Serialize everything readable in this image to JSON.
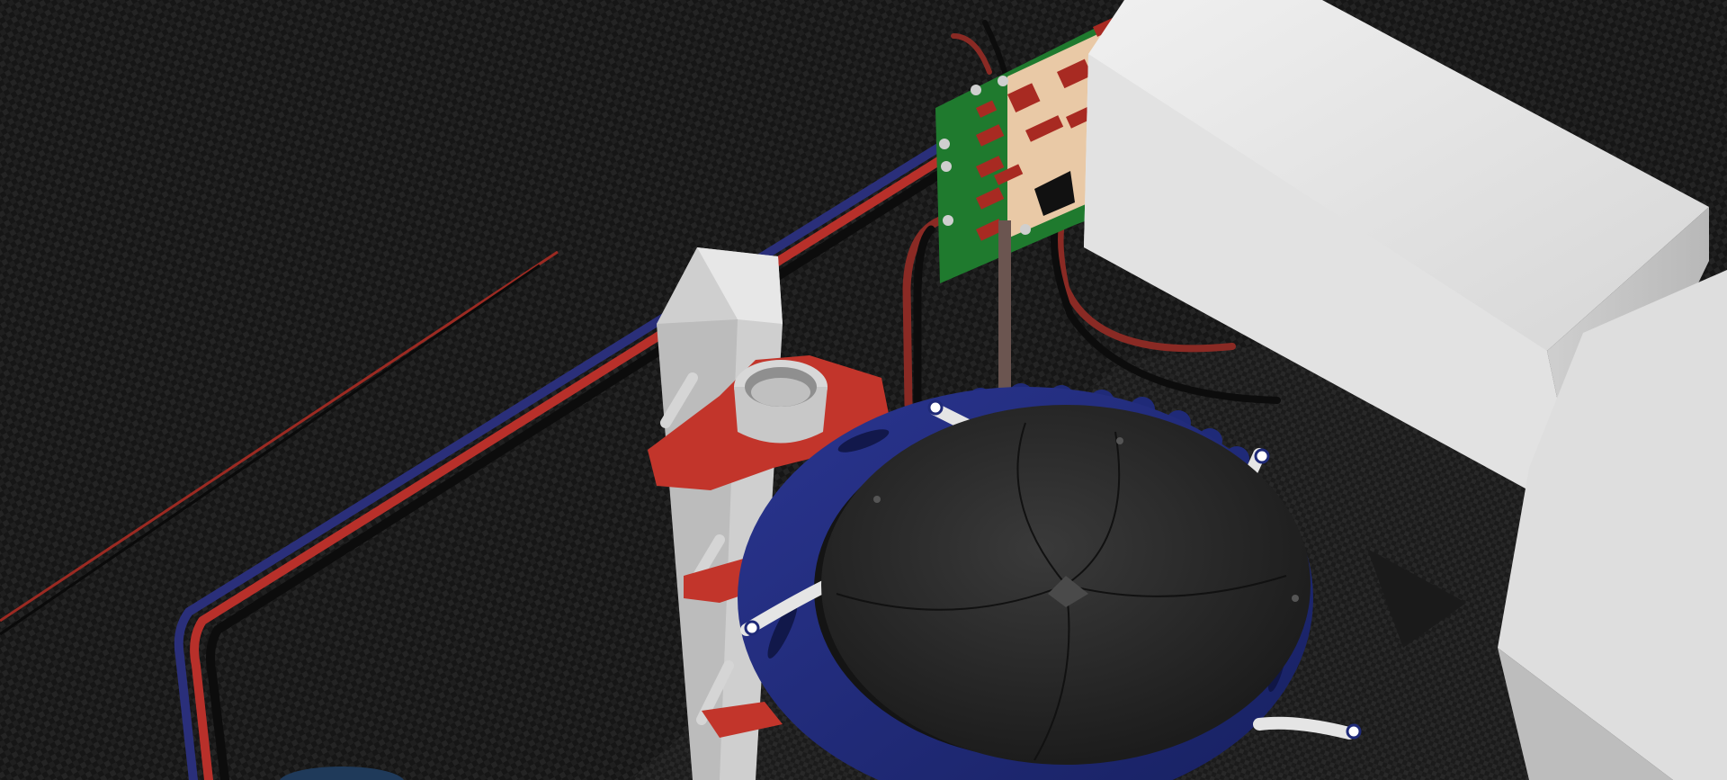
{
  "scene": {
    "description_label": "",
    "colors": {
      "background": "#151515",
      "carbon_weave": "#1e1e1e",
      "cable_red": "#b8302a",
      "cable_blue": "#2a2f7a",
      "cable_black": "#0c0c0c",
      "ring_blue": "#1f2a78",
      "disc_dark": "#262626",
      "white_block": "#e6e6e6",
      "pcb_green": "#1f7a2e",
      "pcb_board_tan": "#e9c9a6",
      "red_clip": "#c2352b"
    },
    "icons": [
      "carbon-fiber-background",
      "circuit-board",
      "white-enclosure-box",
      "blue-gear-ring",
      "dark-iris-disc",
      "white-post-with-pipe",
      "red-clamp",
      "cable-bundle"
    ]
  }
}
